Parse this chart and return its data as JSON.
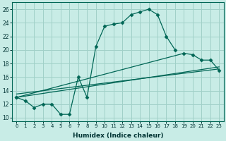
{
  "xlabel": "Humidex (Indice chaleur)",
  "bg_color": "#c8ece6",
  "grid_color": "#a0d0c8",
  "line_color": "#006655",
  "xlim": [
    -0.5,
    23.5
  ],
  "ylim": [
    9.5,
    27.0
  ],
  "xticks": [
    0,
    1,
    2,
    3,
    4,
    5,
    6,
    7,
    8,
    9,
    10,
    11,
    12,
    13,
    14,
    15,
    16,
    17,
    18,
    19,
    20,
    21,
    22,
    23
  ],
  "yticks": [
    10,
    12,
    14,
    16,
    18,
    20,
    22,
    24,
    26
  ],
  "curve1_x": [
    0,
    1,
    2,
    3,
    4,
    5,
    6,
    7,
    8,
    9,
    10,
    11,
    12,
    13,
    14,
    15,
    16,
    17,
    18
  ],
  "curve1_y": [
    13.0,
    12.5,
    11.5,
    12.0,
    12.0,
    10.5,
    10.5,
    16.0,
    13.0,
    20.5,
    23.5,
    23.8,
    24.0,
    25.2,
    25.6,
    26.0,
    25.2,
    22.0,
    20.0
  ],
  "curve2_x": [
    0,
    19,
    20,
    21,
    22,
    23
  ],
  "curve2_y": [
    13.0,
    19.5,
    19.3,
    18.5,
    18.5,
    17.0
  ],
  "curve3_x": [
    0,
    23
  ],
  "curve3_y": [
    13.0,
    17.5
  ],
  "curve4_x": [
    0,
    23
  ],
  "curve4_y": [
    13.5,
    17.2
  ]
}
